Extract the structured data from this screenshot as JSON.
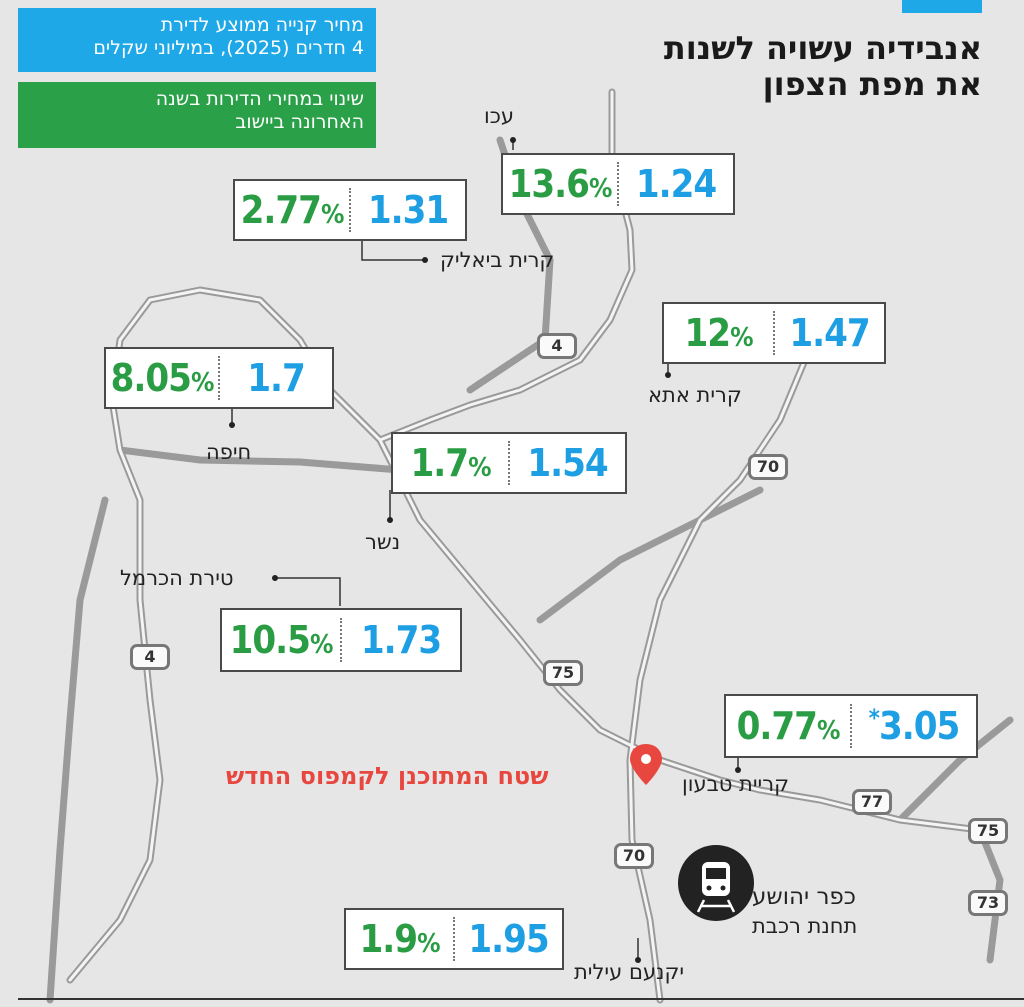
{
  "headline": {
    "line1": "אנבידיה עשויה לשנות",
    "line2": "את מפת הצפון"
  },
  "legend": {
    "price_line1": "מחיר קנייה ממוצע לדירת",
    "price_line2": "4 חדרים (2025), במיליוני שקלים",
    "change_line1": "שינוי במחירי הדירות בשנה",
    "change_line2": "האחרונה ביישוב",
    "price_color": "#1fa8e8",
    "change_color": "#2aa048"
  },
  "cities": [
    {
      "name": "עכו",
      "price": "1.24",
      "change": "13.6"
    },
    {
      "name": "קרית ביאליק",
      "price": "1.31",
      "change": "2.77"
    },
    {
      "name": "קרית אתא",
      "price": "1.47",
      "change": "12"
    },
    {
      "name": "חיפה",
      "price": "1.7",
      "change": "8.05"
    },
    {
      "name": "נשר",
      "price": "1.54",
      "change": "1.7"
    },
    {
      "name": "טירת הכרמל",
      "price": "1.73",
      "change": "10.5"
    },
    {
      "name": "קריית טבעון",
      "price": "3.05",
      "change": "0.77",
      "price_mark": "*"
    },
    {
      "name": "יקנעם עילית",
      "price": "1.95",
      "change": "1.9"
    }
  ],
  "percent_sign": "%",
  "roads": [
    {
      "number": "4"
    },
    {
      "number": "70"
    },
    {
      "number": "4"
    },
    {
      "number": "75"
    },
    {
      "number": "77"
    },
    {
      "number": "75"
    },
    {
      "number": "70"
    },
    {
      "number": "73"
    }
  ],
  "campus": {
    "label": "שטח המתוכנן לקמפוס החדש",
    "color": "#e8473f",
    "icon": "map-pin-icon"
  },
  "train": {
    "name": "כפר יהושע",
    "subtitle": "תחנת רכבת",
    "icon": "train-icon"
  }
}
